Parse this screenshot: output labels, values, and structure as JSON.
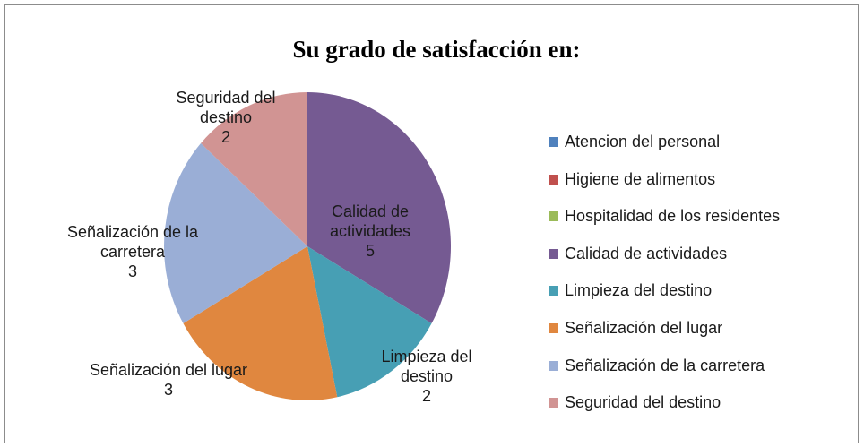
{
  "chart_data": {
    "type": "pie",
    "title": "Su grado de satisfacción en:",
    "categories": [
      "Atencion del personal",
      "Higiene de alimentos",
      "Hospitalidad de los residentes",
      "Calidad de actividades",
      "Limpieza del destino",
      "Señalización del lugar",
      "Señalización de la carretera",
      "Seguridad del destino"
    ],
    "values": [
      0,
      0,
      0,
      5,
      2,
      3,
      3,
      2
    ],
    "colors": [
      "#4f81bd",
      "#c0504d",
      "#9bbb59",
      "#755a92",
      "#479fb4",
      "#e0873f",
      "#9aaed6",
      "#d19493"
    ],
    "legend": "right"
  }
}
